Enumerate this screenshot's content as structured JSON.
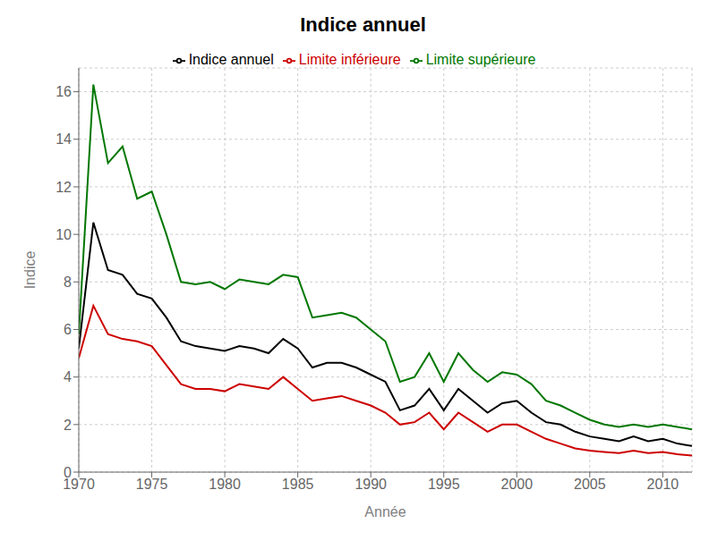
{
  "chart_data": {
    "type": "line",
    "title": "Indice annuel",
    "xlabel": "Année",
    "ylabel": "Indice",
    "x": [
      1970,
      1971,
      1972,
      1973,
      1974,
      1975,
      1976,
      1977,
      1978,
      1979,
      1980,
      1981,
      1982,
      1983,
      1984,
      1985,
      1986,
      1987,
      1988,
      1989,
      1990,
      1991,
      1992,
      1993,
      1994,
      1995,
      1996,
      1997,
      1998,
      1999,
      2000,
      2001,
      2002,
      2003,
      2004,
      2005,
      2006,
      2007,
      2008,
      2009,
      2010,
      2011,
      2012
    ],
    "series": [
      {
        "name": "Indice annuel",
        "color": "#000000",
        "values": [
          5.2,
          10.5,
          8.5,
          8.3,
          7.5,
          7.3,
          6.5,
          5.5,
          5.3,
          5.2,
          5.1,
          5.3,
          5.2,
          5.0,
          5.6,
          5.2,
          4.4,
          4.6,
          4.6,
          4.4,
          4.1,
          3.8,
          2.6,
          2.8,
          3.5,
          2.6,
          3.5,
          3.0,
          2.5,
          2.9,
          3.0,
          2.5,
          2.1,
          2.0,
          1.7,
          1.5,
          1.4,
          1.3,
          1.5,
          1.3,
          1.4,
          1.2,
          1.1
        ]
      },
      {
        "name": "Limite inférieure",
        "color": "#cc0000",
        "values": [
          4.8,
          7.0,
          5.8,
          5.6,
          5.5,
          5.3,
          4.5,
          3.7,
          3.5,
          3.5,
          3.4,
          3.7,
          3.6,
          3.5,
          4.0,
          3.5,
          3.0,
          3.1,
          3.2,
          3.0,
          2.8,
          2.5,
          2.0,
          2.1,
          2.5,
          1.8,
          2.5,
          2.1,
          1.7,
          2.0,
          2.0,
          1.7,
          1.4,
          1.2,
          1.0,
          0.9,
          0.85,
          0.8,
          0.9,
          0.8,
          0.85,
          0.75,
          0.7
        ]
      },
      {
        "name": "Limite supérieure",
        "color": "#007700",
        "values": [
          5.8,
          16.3,
          13.0,
          13.7,
          11.5,
          11.8,
          10.0,
          8.0,
          7.9,
          8.0,
          7.7,
          8.1,
          8.0,
          7.9,
          8.3,
          8.2,
          6.5,
          6.6,
          6.7,
          6.5,
          6.0,
          5.5,
          3.8,
          4.0,
          5.0,
          3.8,
          5.0,
          4.3,
          3.8,
          4.2,
          4.1,
          3.7,
          3.0,
          2.8,
          2.5,
          2.2,
          2.0,
          1.9,
          2.0,
          1.9,
          2.0,
          1.9,
          1.8
        ]
      }
    ],
    "xlim": [
      1970,
      2012
    ],
    "ylim": [
      0,
      17
    ],
    "xticks": [
      1970,
      1975,
      1980,
      1985,
      1990,
      1995,
      2000,
      2005,
      2010
    ],
    "yticks": [
      0,
      2,
      4,
      6,
      8,
      10,
      12,
      14,
      16
    ],
    "grid": true,
    "legend": "top"
  }
}
